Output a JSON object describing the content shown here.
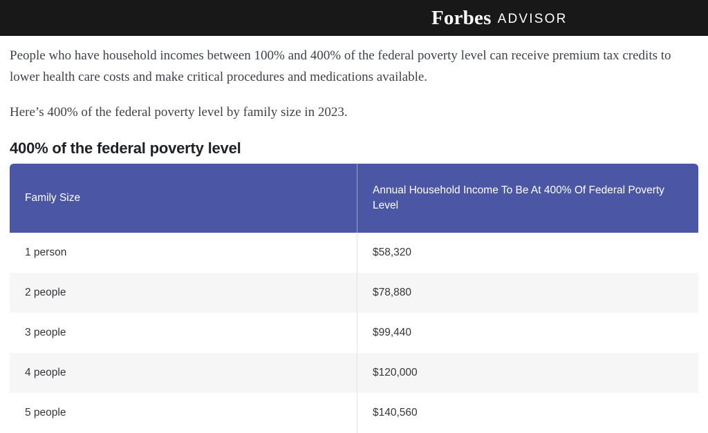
{
  "masthead": {
    "brand": "Forbes",
    "suffix": "ADVISOR",
    "background_color": "#181818"
  },
  "article": {
    "paragraph_intro": "People who have household incomes between 100% and 400% of the federal poverty level can receive premium tax credits to lower health care costs and make critical procedures and medications available.",
    "paragraph_context": "Here’s 400% of the federal poverty level by family size in 2023.",
    "section_heading": "400% of the federal poverty level"
  },
  "table": {
    "header_background_color": "#4b57a5",
    "columns": [
      "Family Size",
      "Annual Household Income To Be At 400% Of Federal Poverty Level"
    ],
    "rows": [
      {
        "family_size": "1 person",
        "income": "$58,320"
      },
      {
        "family_size": "2 people",
        "income": "$78,880"
      },
      {
        "family_size": "3 people",
        "income": "$99,440"
      },
      {
        "family_size": "4 people",
        "income": "$120,000"
      },
      {
        "family_size": "5 people",
        "income": "$140,560"
      }
    ]
  },
  "chart_data": {
    "type": "table",
    "title": "400% of the federal poverty level",
    "columns": [
      "Family Size",
      "Annual Household Income To Be At 400% Of Federal Poverty Level"
    ],
    "rows": [
      [
        "1 person",
        58320
      ],
      [
        "2 people",
        78880
      ],
      [
        "3 people",
        99440
      ],
      [
        "4 people",
        120000
      ],
      [
        "5 people",
        140560
      ]
    ],
    "units": "USD per year",
    "year": "2023"
  }
}
